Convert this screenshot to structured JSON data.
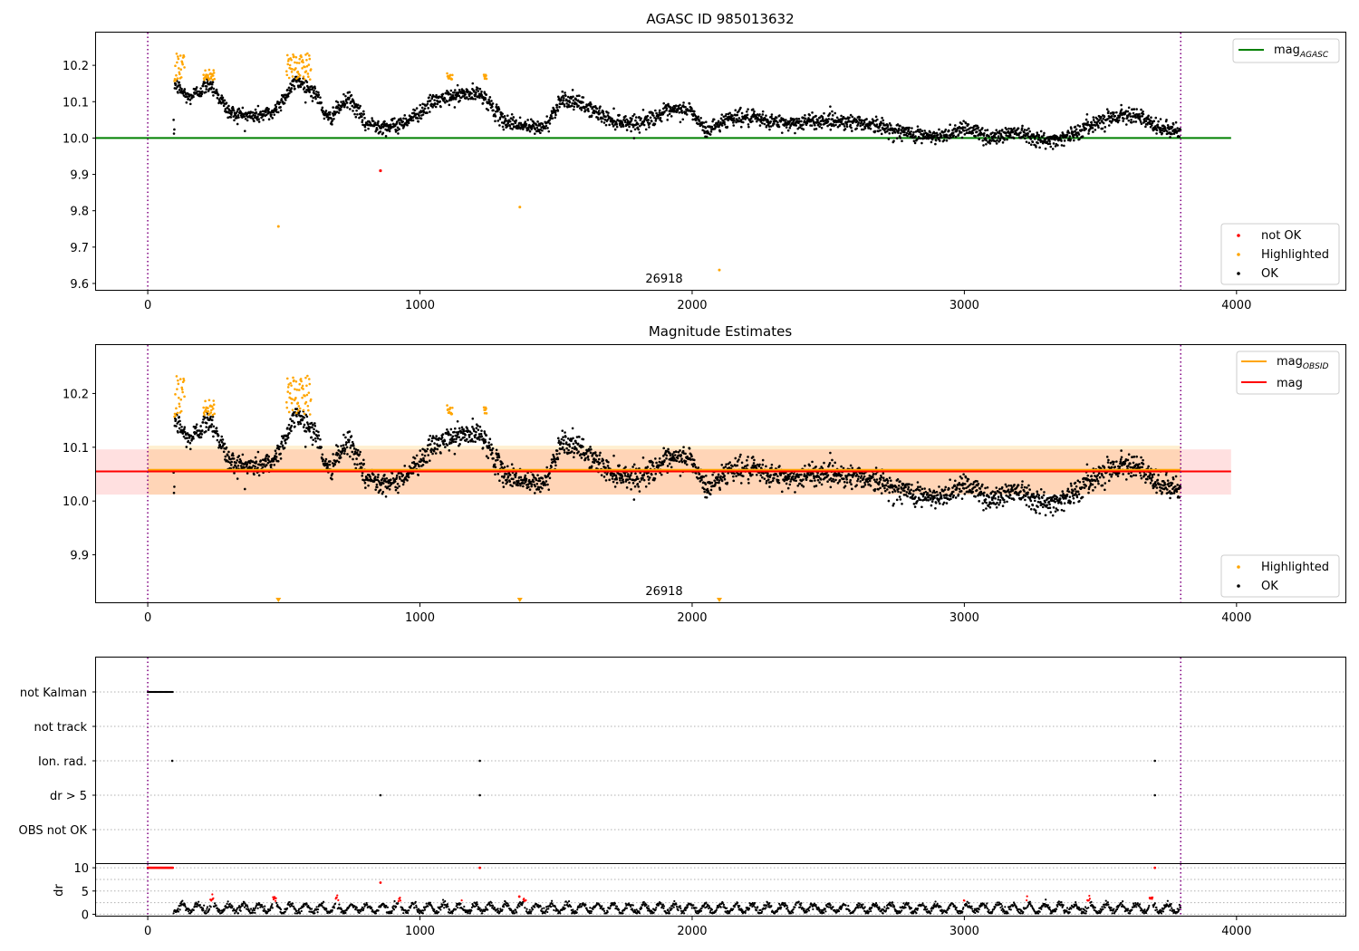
{
  "chart_data": [
    {
      "type": "scatter",
      "title": "AGASC ID 985013632",
      "xlabel": "",
      "ylabel": "",
      "xlim": [
        -190,
        4400
      ],
      "ylim": [
        9.58,
        10.29
      ],
      "xticks": [
        0,
        1000,
        2000,
        3000,
        4000
      ],
      "yticks": [
        9.6,
        9.7,
        9.8,
        9.9,
        10.0,
        10.1,
        10.2
      ],
      "ytick_labels": [
        "9.6",
        "9.7",
        "9.8",
        "9.9",
        "10.0",
        "10.1",
        "10.2"
      ],
      "vlines": [
        0,
        3795
      ],
      "hline": {
        "name": "mag_AGASC",
        "y": 10.0,
        "x": [
          -190,
          3980
        ],
        "color": "#008000"
      },
      "obsid_label": "26918",
      "series": [
        {
          "name": "not OK",
          "color": "#ff0000",
          "points": [
            [
              855,
              9.91
            ]
          ]
        },
        {
          "name": "Highlighted",
          "color": "#ffa500",
          "points": [
            [
              480,
              9.757
            ],
            [
              1367,
              9.81
            ],
            [
              2100,
              9.637
            ]
          ],
          "segments": [
            [
              98,
              135,
              10.155,
              10.235
            ],
            [
              205,
              245,
              10.16,
              10.19
            ],
            [
              510,
              600,
              10.16,
              10.235
            ],
            [
              1100,
              1120,
              10.16,
              10.18
            ],
            [
              1235,
              1245,
              10.16,
              10.175
            ]
          ]
        },
        {
          "name": "OK",
          "color": "#000000",
          "trend": [
            [
              98,
              10.15
            ],
            [
              150,
              10.11
            ],
            [
              230,
              10.15
            ],
            [
              300,
              10.07
            ],
            [
              380,
              10.06
            ],
            [
              460,
              10.07
            ],
            [
              550,
              10.16
            ],
            [
              620,
              10.12
            ],
            [
              660,
              10.05
            ],
            [
              740,
              10.11
            ],
            [
              800,
              10.04
            ],
            [
              900,
              10.03
            ],
            [
              980,
              10.06
            ],
            [
              1050,
              10.1
            ],
            [
              1150,
              10.12
            ],
            [
              1230,
              10.12
            ],
            [
              1300,
              10.05
            ],
            [
              1400,
              10.03
            ],
            [
              1460,
              10.03
            ],
            [
              1520,
              10.11
            ],
            [
              1600,
              10.09
            ],
            [
              1700,
              10.05
            ],
            [
              1800,
              10.04
            ],
            [
              1900,
              10.07
            ],
            [
              1990,
              10.08
            ],
            [
              2050,
              10.02
            ],
            [
              2150,
              10.06
            ],
            [
              2250,
              10.05
            ],
            [
              2350,
              10.04
            ],
            [
              2500,
              10.05
            ],
            [
              2650,
              10.04
            ],
            [
              2750,
              10.02
            ],
            [
              2900,
              10.0
            ],
            [
              3000,
              10.03
            ],
            [
              3100,
              10.0
            ],
            [
              3200,
              10.02
            ],
            [
              3300,
              9.99
            ],
            [
              3400,
              10.01
            ],
            [
              3500,
              10.05
            ],
            [
              3620,
              10.07
            ],
            [
              3700,
              10.03
            ],
            [
              3790,
              10.02
            ]
          ],
          "noise": 0.018,
          "x_range": [
            95,
            3795
          ]
        }
      ],
      "legend": [
        {
          "position": "top-right",
          "entries": [
            {
              "label": "mag",
              "sub": "AGASC",
              "kind": "line",
              "color": "#008000"
            }
          ]
        },
        {
          "position": "bottom-right",
          "entries": [
            {
              "label": "not OK",
              "kind": "dot",
              "color": "#ff0000"
            },
            {
              "label": "Highlighted",
              "kind": "dot",
              "color": "#ffa500"
            },
            {
              "label": "OK",
              "kind": "dot",
              "color": "#000000"
            }
          ]
        }
      ]
    },
    {
      "type": "scatter",
      "title": "Magnitude Estimates",
      "xlabel": "",
      "ylabel": "",
      "xlim": [
        -190,
        4400
      ],
      "ylim": [
        9.81,
        10.29
      ],
      "xticks": [
        0,
        1000,
        2000,
        3000,
        4000
      ],
      "yticks": [
        9.9,
        10.0,
        10.1,
        10.2
      ],
      "ytick_labels": [
        "9.9",
        "10.0",
        "10.1",
        "10.2"
      ],
      "vlines": [
        0,
        3795
      ],
      "mag": {
        "y": 10.055,
        "band": [
          10.012,
          10.096
        ],
        "x": [
          -190,
          3980
        ],
        "color": "#ff0000"
      },
      "mag_obsid": {
        "y": 10.058,
        "band": [
          10.012,
          10.103
        ],
        "x": [
          0,
          3795
        ],
        "color": "#ffa500"
      },
      "off_scale_markers": [
        480,
        1367,
        2100
      ],
      "obsid_label": "26918",
      "legend": [
        {
          "position": "top-right",
          "entries": [
            {
              "label": "mag",
              "sub": "OBSID",
              "kind": "line",
              "color": "#ffa500"
            },
            {
              "label": "mag",
              "kind": "line",
              "color": "#ff0000"
            }
          ]
        },
        {
          "position": "bottom-right",
          "entries": [
            {
              "label": "Highlighted",
              "kind": "dot",
              "color": "#ffa500"
            },
            {
              "label": "OK",
              "kind": "dot",
              "color": "#000000"
            }
          ]
        }
      ]
    },
    {
      "type": "scatter",
      "title": "",
      "xlim": [
        -190,
        4400
      ],
      "categories": [
        "not Kalman",
        "not track",
        "Ion. rad.",
        "dr > 5",
        "OBS not OK"
      ],
      "vlines": [
        0,
        3795
      ],
      "flags": {
        "not Kalman": {
          "segments": [
            [
              0,
              95
            ]
          ]
        },
        "not track": {
          "segments": []
        },
        "Ion. rad.": {
          "points": [
            90,
            1220,
            3700
          ]
        },
        "dr > 5": {
          "points": [
            855,
            1220,
            3700
          ]
        },
        "OBS not OK": {
          "points": []
        }
      }
    },
    {
      "type": "scatter",
      "title": "",
      "xlabel": "",
      "ylabel": "dr",
      "xlim": [
        -190,
        4400
      ],
      "ylim": [
        -0.5,
        10.8
      ],
      "xticks": [
        0,
        1000,
        2000,
        3000,
        4000
      ],
      "yticks": [
        0,
        5,
        10
      ],
      "ytick_labels": [
        "0",
        "5",
        "10"
      ],
      "hlines_dotted": [
        0,
        2.5,
        5,
        7.5,
        10
      ],
      "vlines": [
        0,
        3795
      ],
      "red_points": [
        [
          855,
          6.8
        ],
        [
          1220,
          10.0
        ],
        [
          1365,
          3.8
        ],
        [
          3700,
          10.0
        ]
      ],
      "red_top_segment": [
        0,
        95,
        10.0
      ]
    }
  ]
}
